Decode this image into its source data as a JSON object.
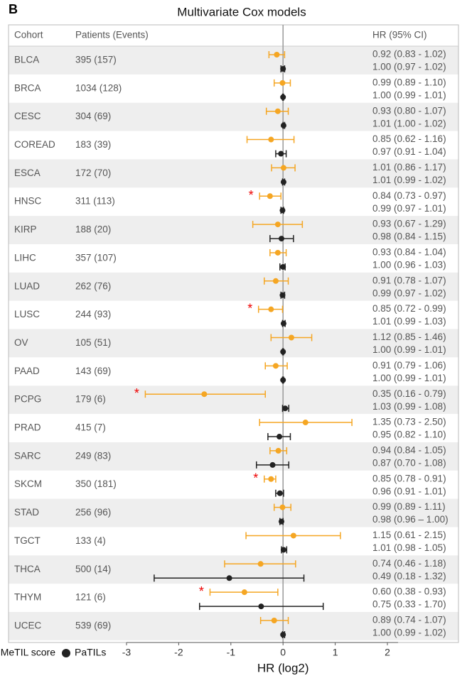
{
  "chart_data": {
    "type": "forest",
    "panel_label": "B",
    "title": "Multivariate Cox models",
    "columns": [
      "Cohort",
      "Patients (Events)",
      "HR (95% CI)"
    ],
    "xlabel": "HR (log2)",
    "xlim": [
      -3,
      2
    ],
    "xticks": [
      -3,
      -2,
      -1,
      0,
      1,
      2
    ],
    "categories": [
      "BLCA",
      "BRCA",
      "CESC",
      "COREAD",
      "ESCA",
      "HNSC",
      "KIRP",
      "LIHC",
      "LUAD",
      "LUSC",
      "OV",
      "PAAD",
      "PCPG",
      "PRAD",
      "SARC",
      "SKCM",
      "STAD",
      "TGCT",
      "THCA",
      "THYM",
      "UCEC"
    ],
    "patients": [
      "395 (157)",
      "1034 (128)",
      "304 (69)",
      "183 (39)",
      "172 (70)",
      "311 (113)",
      "188 (20)",
      "357 (107)",
      "262 (76)",
      "244 (93)",
      "105 (51)",
      "143 (69)",
      "179 (6)",
      "415 (7)",
      "249 (83)",
      "350 (181)",
      "256 (96)",
      "133 (4)",
      "500 (14)",
      "121 (6)",
      "539 (69)"
    ],
    "series": [
      {
        "name": "MeTIL score",
        "color": "#f5a623",
        "values": [
          -0.12,
          -0.01,
          -0.1,
          -0.23,
          0.01,
          -0.25,
          -0.1,
          -0.1,
          -0.14,
          -0.23,
          0.16,
          -0.14,
          -1.51,
          0.43,
          -0.09,
          -0.23,
          -0.01,
          0.2,
          -0.43,
          -0.74,
          -0.17
        ],
        "lower": [
          -0.27,
          -0.17,
          -0.32,
          -0.69,
          -0.22,
          -0.45,
          -0.58,
          -0.25,
          -0.36,
          -0.47,
          -0.23,
          -0.34,
          -2.64,
          -0.45,
          -0.25,
          -0.36,
          -0.17,
          -0.71,
          -1.12,
          -1.4,
          -0.43
        ],
        "upper": [
          0.03,
          0.14,
          0.1,
          0.21,
          0.23,
          -0.04,
          0.37,
          0.06,
          0.1,
          -0.01,
          0.55,
          0.08,
          -0.34,
          1.32,
          0.07,
          -0.14,
          0.15,
          1.1,
          0.24,
          -0.1,
          0.1
        ],
        "significance": [
          null,
          null,
          null,
          null,
          null,
          "*",
          null,
          null,
          null,
          "*",
          null,
          null,
          "*",
          null,
          null,
          "*",
          null,
          null,
          null,
          "*",
          null
        ],
        "ci_labels": [
          "0.92 (0.83 - 1.02)",
          "0.99 (0.89 - 1.10)",
          "0.93 (0.80 - 1.07)",
          "0.85 (0.62 - 1.16)",
          "1.01 (0.86 - 1.17)",
          "0.84 (0.73 - 0.97)",
          "0.93 (0.67 - 1.29)",
          "0.93 (0.84 - 1.04)",
          "0.91 (0.78 - 1.07)",
          "0.85 (0.72 - 0.99)",
          "1.12 (0.85 - 1.46)",
          "0.91 (0.79 - 1.06)",
          "0.35 (0.16 - 0.79)",
          "1.35 (0.73 - 2.50)",
          "0.94 (0.84 - 1.05)",
          "0.85 (0.78 - 0.91)",
          "0.99 (0.89 - 1.11)",
          "1.15 (0.61 - 2.15)",
          "0.74 (0.46 - 1.18)",
          "0.60 (0.38 - 0.93)",
          "0.89 (0.74 - 1.07)"
        ]
      },
      {
        "name": "PaTILs",
        "color": "#222222",
        "values": [
          0,
          0,
          0.01,
          -0.04,
          0.01,
          -0.01,
          -0.03,
          0,
          -0.01,
          0.01,
          0,
          0,
          0.04,
          -0.07,
          -0.2,
          -0.06,
          -0.03,
          0.01,
          -1.03,
          -0.42,
          0
        ],
        "lower": [
          -0.04,
          -0.01,
          0,
          -0.14,
          -0.01,
          -0.04,
          -0.25,
          -0.06,
          -0.04,
          -0.01,
          -0.01,
          -0.01,
          -0.01,
          -0.29,
          -0.51,
          -0.14,
          -0.06,
          -0.03,
          -2.47,
          -1.6,
          -0.01
        ],
        "upper": [
          0.03,
          0.01,
          0.03,
          0.06,
          0.03,
          0.01,
          0.2,
          0.04,
          0.03,
          0.04,
          0.01,
          0.01,
          0.11,
          0.14,
          0.11,
          0.01,
          0,
          0.07,
          0.4,
          0.77,
          0.03
        ],
        "ci_labels": [
          "1.00 (0.97 - 1.02)",
          "1.00 (0.99 - 1.01)",
          "1.01 (1.00 - 1.02)",
          "0.97 (0.91 - 1.04)",
          "1.01 (0.99 - 1.02)",
          "0.99 (0.97 - 1.01)",
          "0.98 (0.84 - 1.15)",
          "1.00 (0.96 - 1.03)",
          "0.99 (0.97 - 1.02)",
          "1.01 (0.99 - 1.03)",
          "1.00 (0.99 - 1.01)",
          "1.00 (0.99 - 1.01)",
          "1.03 (0.99 - 1.08)",
          "0.95 (0.82 - 1.10)",
          "0.87 (0.70 - 1.08)",
          "0.96 (0.91 - 1.01)",
          "0.98 (0.96 – 1.00)",
          "1.01 (0.98 - 1.05)",
          "0.49 (0.18 - 1.32)",
          "0.75 (0.33 - 1.70)",
          "1.00 (0.99 - 1.02)"
        ]
      }
    ]
  }
}
